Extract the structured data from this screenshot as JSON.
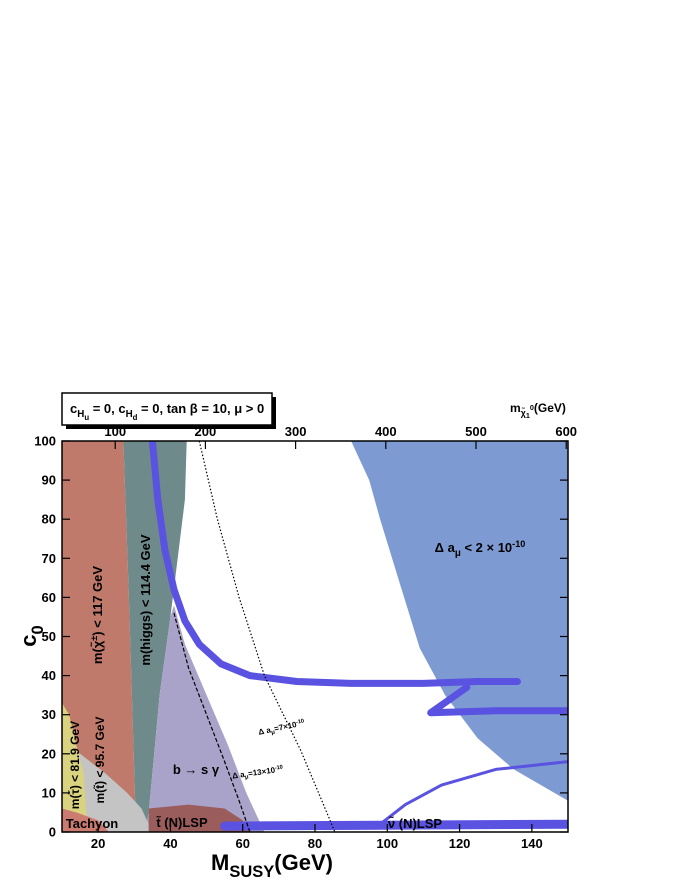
{
  "chart_data": {
    "type": "region",
    "title_parts": [
      {
        "text": "c"
      },
      {
        "text": "H",
        "pos": "sub"
      },
      {
        "text": "u",
        "pos": "subsub"
      },
      {
        "text": " = 0, c"
      },
      {
        "text": "H",
        "pos": "sub"
      },
      {
        "text": "d",
        "pos": "subsub"
      },
      {
        "text": " = 0, tan β = 10, μ > 0"
      }
    ],
    "xlabel_parts": [
      {
        "text": "M"
      },
      {
        "text": "SUSY",
        "pos": "sub"
      },
      {
        "text": "(GeV)"
      }
    ],
    "ylabel_parts": [
      {
        "text": "c"
      },
      {
        "text": "0",
        "pos": "sub"
      }
    ],
    "x2label_parts": [
      {
        "text": "m"
      },
      {
        "text": "χ̃",
        "pos": "sub"
      },
      {
        "text": "1",
        "pos": "subsub"
      },
      {
        "text": "0",
        "pos": "subsup"
      },
      {
        "text": "(GeV)"
      }
    ],
    "xlim": [
      10,
      150
    ],
    "ylim": [
      0,
      100
    ],
    "x2lim": [
      41,
      602
    ],
    "xticks": [
      20,
      40,
      60,
      80,
      100,
      120,
      140
    ],
    "yticks": [
      0,
      10,
      20,
      30,
      40,
      50,
      60,
      70,
      80,
      90,
      100
    ],
    "x2ticks": [
      100,
      200,
      300,
      400,
      500,
      600
    ],
    "regions": [
      {
        "color": "#c07a6b",
        "points": [
          [
            10,
            0
          ],
          [
            10,
            100
          ],
          [
            27,
            100
          ],
          [
            28.5,
            60
          ],
          [
            29.5,
            30
          ],
          [
            30.5,
            0
          ]
        ],
        "label_parts": [
          {
            "text": "m(χ̃"
          },
          {
            "text": "±",
            "pos": "sup"
          },
          {
            "text": ") < 117 GeV"
          }
        ]
      },
      {
        "color": "#6f8a8b",
        "points": [
          [
            27,
            100
          ],
          [
            44.5,
            100
          ],
          [
            44,
            85
          ],
          [
            42,
            70
          ],
          [
            40,
            55
          ],
          [
            37,
            35
          ],
          [
            35,
            15
          ],
          [
            34,
            5
          ],
          [
            33,
            0
          ],
          [
            30.5,
            0
          ],
          [
            29.5,
            30
          ],
          [
            28.5,
            60
          ]
        ],
        "label_parts": [
          {
            "text": "m(higgs) < 114.4 GeV"
          }
        ]
      },
      {
        "color": "#a9a3c9",
        "points": [
          [
            41,
            58
          ],
          [
            44,
            48
          ],
          [
            50,
            35
          ],
          [
            56,
            22
          ],
          [
            61,
            10
          ],
          [
            66,
            0
          ],
          [
            33,
            0
          ],
          [
            34,
            5
          ],
          [
            35,
            15
          ],
          [
            37,
            35
          ],
          [
            40,
            55
          ]
        ],
        "label_parts": [
          {
            "text": "b → s γ"
          }
        ]
      },
      {
        "color": "#c4c4c4",
        "points": [
          [
            10,
            0
          ],
          [
            10,
            22
          ],
          [
            15,
            20
          ],
          [
            22,
            15
          ],
          [
            28,
            10
          ],
          [
            32,
            6
          ],
          [
            34,
            2
          ],
          [
            34,
            0
          ]
        ],
        "label_parts": [
          {
            "text": "m(t̃) < 95.7 GeV"
          }
        ]
      },
      {
        "color": "#d9d27e",
        "points": [
          [
            10,
            0
          ],
          [
            10,
            33
          ],
          [
            12,
            30
          ],
          [
            14,
            22
          ],
          [
            16,
            15
          ],
          [
            17,
            0
          ]
        ],
        "label_parts": [
          {
            "text": "m(τ̃) < 81.9 GeV"
          }
        ]
      },
      {
        "color": "#cc7b70",
        "points": [
          [
            10,
            0
          ],
          [
            10,
            6
          ],
          [
            14,
            5
          ],
          [
            20,
            3
          ],
          [
            23,
            0
          ]
        ],
        "label_parts": [
          {
            "text": "Tachyon"
          }
        ]
      },
      {
        "color": "#9b5c5c",
        "points": [
          [
            34,
            0
          ],
          [
            34,
            6
          ],
          [
            45,
            7
          ],
          [
            55,
            6
          ],
          [
            60,
            3
          ],
          [
            62,
            0
          ]
        ],
        "label_parts": [
          {
            "text": "t̃ (N)LSP"
          }
        ]
      },
      {
        "color": "#7d9ad3",
        "points": [
          [
            90,
            100
          ],
          [
            95,
            90
          ],
          [
            98,
            80
          ],
          [
            103,
            65
          ],
          [
            109,
            47
          ],
          [
            116,
            35
          ],
          [
            125,
            24
          ],
          [
            135,
            16
          ],
          [
            150,
            8
          ],
          [
            150,
            100
          ]
        ],
        "label_parts": [
          {
            "text": "Δ a"
          },
          {
            "text": "μ",
            "pos": "sub"
          },
          {
            "text": " < 2 × 10"
          },
          {
            "text": "-10",
            "pos": "sup"
          }
        ]
      }
    ],
    "bands": [
      {
        "color": "#5a52e0",
        "points": [
          [
            35,
            100
          ],
          [
            36.5,
            85
          ],
          [
            38.5,
            72
          ],
          [
            41,
            62
          ],
          [
            44,
            54
          ],
          [
            48,
            48
          ],
          [
            54,
            43
          ],
          [
            62,
            40
          ],
          [
            75,
            38.5
          ],
          [
            90,
            38
          ],
          [
            110,
            38
          ],
          [
            125,
            38.5
          ],
          [
            136,
            38.5
          ]
        ]
      },
      {
        "color": "#5a52e0",
        "points": [
          [
            122,
            37
          ],
          [
            112,
            30.5
          ],
          [
            130,
            31
          ],
          [
            150,
            31
          ]
        ]
      },
      {
        "color": "#5a52e0",
        "points": [
          [
            98,
            2
          ],
          [
            105,
            7
          ],
          [
            115,
            12
          ],
          [
            130,
            16
          ],
          [
            150,
            18
          ]
        ]
      },
      {
        "color": "#5a52e0",
        "points": [
          [
            55,
            1.5
          ],
          [
            150,
            2
          ]
        ],
        "label_parts": [
          {
            "text": "ν̃ (N)LSP"
          }
        ]
      }
    ],
    "curves": [
      {
        "style": "dotted",
        "points": [
          [
            48,
            100
          ],
          [
            53,
            80
          ],
          [
            59,
            60
          ],
          [
            66,
            40
          ],
          [
            76,
            21
          ],
          [
            81,
            10
          ],
          [
            85.5,
            0
          ]
        ],
        "label_parts": [
          {
            "text": "Δ a"
          },
          {
            "text": "μ",
            "pos": "sub"
          },
          {
            "text": "=7×10"
          },
          {
            "text": "-10",
            "pos": "sup"
          }
        ]
      },
      {
        "style": "dashed",
        "points": [
          [
            41,
            56
          ],
          [
            45,
            42
          ],
          [
            50,
            30
          ],
          [
            55,
            18
          ],
          [
            59,
            8
          ],
          [
            62,
            0
          ]
        ],
        "label_parts": [
          {
            "text": "Δ a"
          },
          {
            "text": "μ",
            "pos": "sub"
          },
          {
            "text": "=13×10"
          },
          {
            "text": "-10",
            "pos": "sup"
          }
        ]
      }
    ]
  }
}
